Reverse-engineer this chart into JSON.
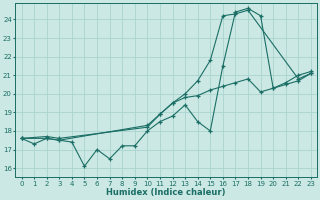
{
  "xlabel": "Humidex (Indice chaleur)",
  "bg_color": "#cce8e4",
  "grid_color": "#aad4cf",
  "line_color": "#1a6e65",
  "xlim": [
    -0.5,
    23.5
  ],
  "ylim": [
    15.5,
    24.9
  ],
  "xticks": [
    0,
    1,
    2,
    3,
    4,
    5,
    6,
    7,
    8,
    9,
    10,
    11,
    12,
    13,
    14,
    15,
    16,
    17,
    18,
    19,
    20,
    21,
    22,
    23
  ],
  "yticks": [
    16,
    17,
    18,
    19,
    20,
    21,
    22,
    23,
    24
  ],
  "line1_x": [
    0,
    1,
    2,
    3,
    4,
    5,
    6,
    7,
    8,
    9,
    10,
    11,
    12,
    13,
    14,
    15,
    16,
    17,
    18,
    19,
    20,
    21,
    22,
    23
  ],
  "line1_y": [
    17.6,
    17.3,
    17.6,
    17.5,
    17.4,
    16.1,
    17.0,
    16.5,
    17.2,
    17.2,
    18.0,
    18.5,
    18.8,
    19.4,
    18.5,
    18.0,
    21.5,
    24.4,
    24.6,
    24.2,
    20.3,
    20.6,
    21.0,
    21.2
  ],
  "line2_x": [
    0,
    2,
    3,
    10,
    11,
    12,
    13,
    14,
    15,
    16,
    17,
    18,
    22,
    23
  ],
  "line2_y": [
    17.6,
    17.6,
    17.5,
    18.3,
    18.9,
    19.5,
    20.0,
    20.7,
    21.8,
    24.2,
    24.3,
    24.5,
    20.8,
    21.1
  ],
  "line3_x": [
    0,
    2,
    3,
    10,
    11,
    12,
    13,
    14,
    15,
    16,
    17,
    18,
    19,
    20,
    21,
    22,
    23
  ],
  "line3_y": [
    17.6,
    17.7,
    17.6,
    18.2,
    18.9,
    19.5,
    19.8,
    19.9,
    20.2,
    20.4,
    20.6,
    20.8,
    20.1,
    20.3,
    20.5,
    20.7,
    21.1
  ]
}
